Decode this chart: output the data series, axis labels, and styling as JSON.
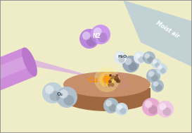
{
  "bg_color": "#eeedc8",
  "copper_color_top": "#c8906a",
  "copper_color_side": "#a06840",
  "copper_color_edge": "#8a5830",
  "laser_color": "#d8a0e8",
  "laser_cylinder_color": "#cc88dd",
  "plasma_color": "#ffcc44",
  "plasma_glow": "#ff9900",
  "moist_air_color": "#b8ccd8",
  "moist_air_label": "Moist air",
  "n2_label": "N2",
  "n2_color": "#c899dd",
  "n2_label_color": "#ffffff",
  "h2o_label": "H₂O",
  "h2o_o_color": "#9aaabb",
  "h2o_h_color": "#dde8f0",
  "o2_label": "O₂",
  "o2_color": "#aabbc8",
  "cu_label": "Cu",
  "cu_label_color": "#ff8800",
  "sphere_gray_dark": "#7a8a9a",
  "sphere_gray_mid": "#aabbc8",
  "sphere_gray_light": "#ccdde8",
  "sphere_pink": "#e8aad0",
  "sphere_pink_light": "#f0c8e4",
  "border_color": "#888888"
}
